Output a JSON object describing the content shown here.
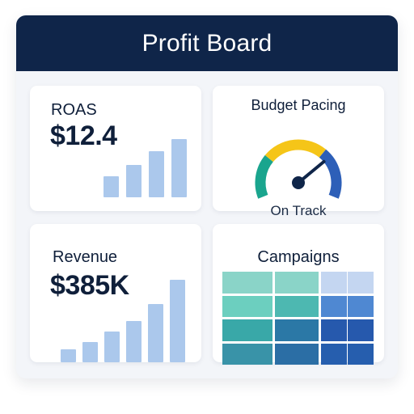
{
  "header": {
    "title": "Profit Board"
  },
  "roas": {
    "label": "ROAS",
    "value": "$12.4",
    "trend_values": [
      3,
      4.5,
      6.5,
      8.2
    ]
  },
  "pacing": {
    "label": "Budget Pacing",
    "status": "On Track",
    "gauge_value": 0.78,
    "colors": {
      "low": "#1aa58e",
      "mid": "#f5c518",
      "high": "#2d5fb8",
      "needle": "#0f2549"
    }
  },
  "revenue": {
    "label": "Revenue",
    "value": "$385K",
    "trend_values": [
      1.7,
      2.6,
      4.0,
      5.4,
      7.6,
      10.7
    ]
  },
  "campaigns": {
    "label": "Campaigns",
    "heatmap": [
      [
        "#8ad4c8",
        "#8ad4c8",
        "#c4d6f1",
        "#c4d6f1"
      ],
      [
        "#6ccfbf",
        "#4db8b1",
        "#4f88d2",
        "#4f88d2"
      ],
      [
        "#39a8a8",
        "#2b78a6",
        "#2659ad",
        "#2659ad"
      ],
      [
        "#3993a8",
        "#2b6ea5",
        "#265eae",
        "#265eae"
      ]
    ]
  }
}
